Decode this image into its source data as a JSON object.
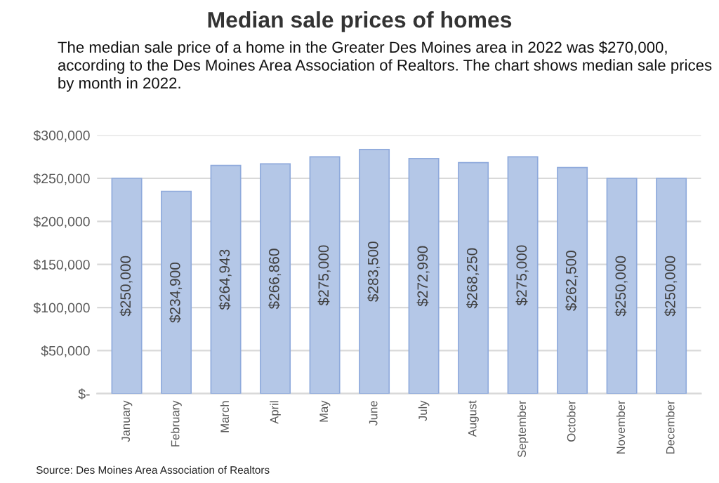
{
  "chart_data": {
    "type": "bar",
    "title": "Median sale prices of homes",
    "subtitle": "The median sale price of a home in the Greater Des Moines area in 2022 was $270,000, according to the Des Moines Area Association of Realtors. The chart shows median sale prices by month in 2022.",
    "categories": [
      "January",
      "February",
      "March",
      "April",
      "May",
      "June",
      "July",
      "August",
      "September",
      "October",
      "November",
      "December"
    ],
    "values": [
      250000,
      234900,
      264943,
      266860,
      275000,
      283500,
      272990,
      268250,
      275000,
      262500,
      250000,
      250000
    ],
    "value_labels": [
      "$250,000",
      "$234,900",
      "$264,943",
      "$266,860",
      "$275,000",
      "$283,500",
      "$272,990",
      "$268,250",
      "$275,000",
      "$262,500",
      "$250,000",
      "$250,000"
    ],
    "color": "#b4c7e7",
    "ylim": [
      0,
      300000
    ],
    "yticks": [
      {
        "value": 0,
        "label": "$-"
      },
      {
        "value": 50000,
        "label": "$50,000"
      },
      {
        "value": 100000,
        "label": "$100,000"
      },
      {
        "value": 150000,
        "label": "$150,000"
      },
      {
        "value": 200000,
        "label": "$200,000"
      },
      {
        "value": 250000,
        "label": "$250,000"
      },
      {
        "value": 300000,
        "label": "$300,000"
      }
    ],
    "grid": "y",
    "annotations": [
      "Source: Des Moines Area Association of Realtors"
    ]
  }
}
